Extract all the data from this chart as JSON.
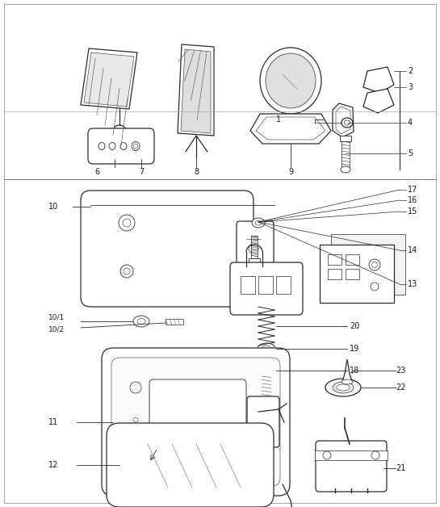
{
  "bg_color": "#ffffff",
  "line_color": "#2a2a2a",
  "text_color": "#1a1a1a",
  "fig_w": 5.45,
  "fig_h": 6.28,
  "dpi": 100
}
